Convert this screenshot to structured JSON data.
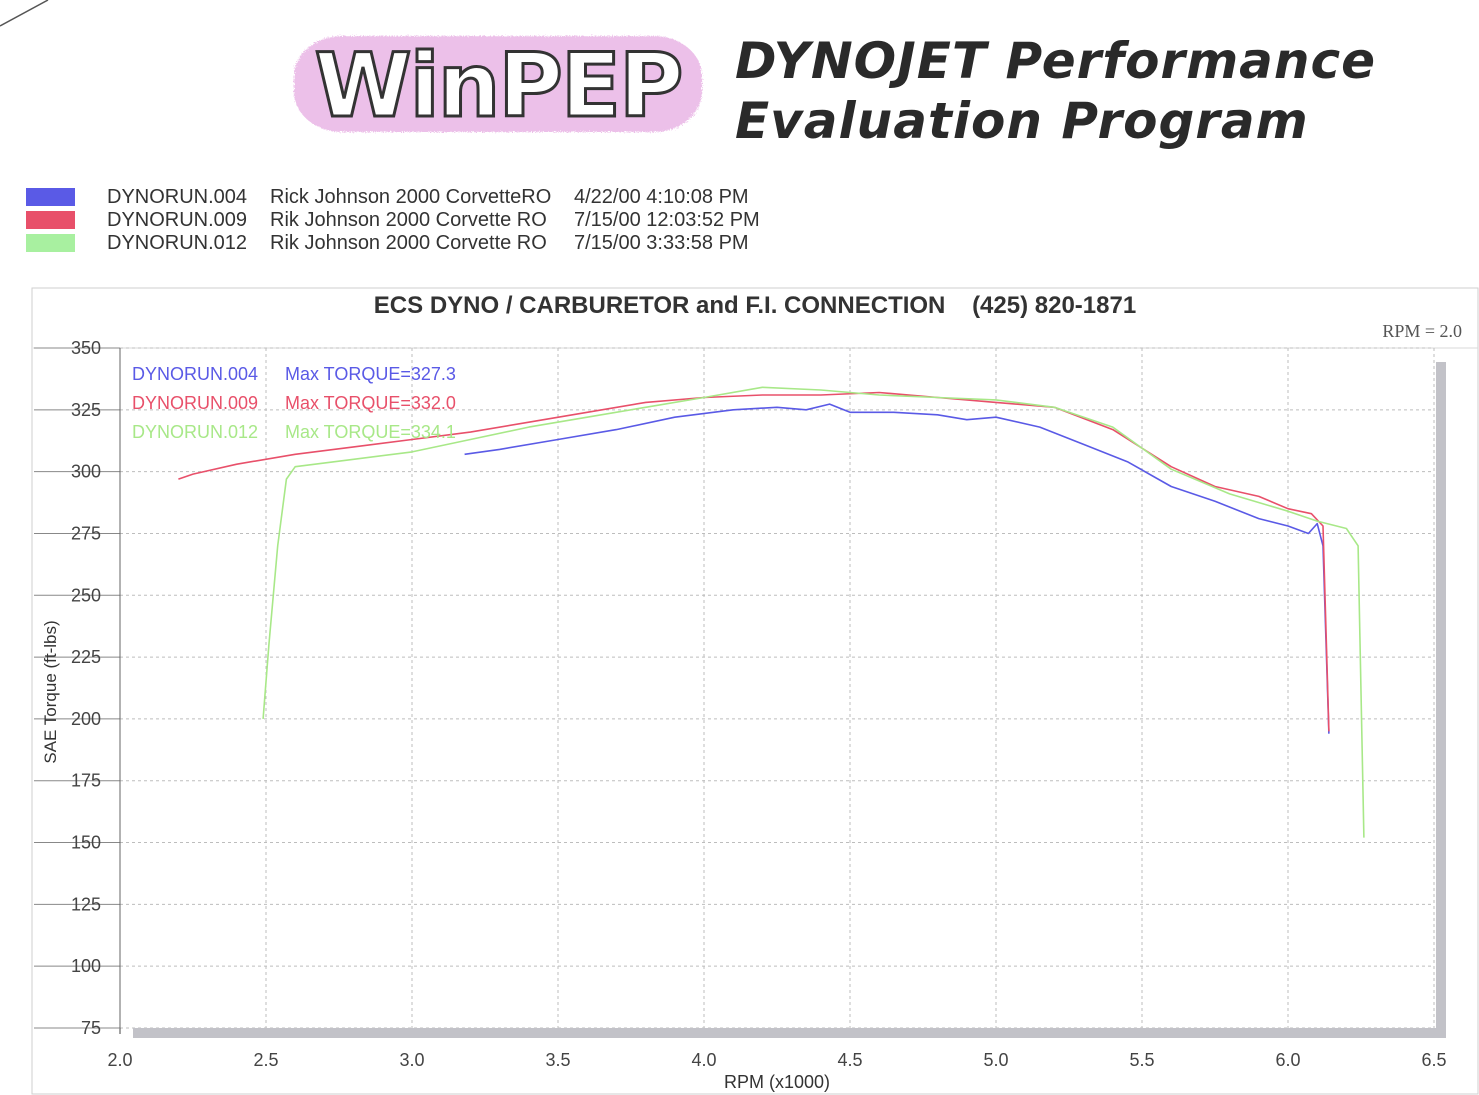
{
  "header": {
    "logo_text": "WinPEP",
    "line1": "DYNOJET Performance",
    "line2": "Evaluation Program"
  },
  "legend": [
    {
      "file": "DYNORUN.004",
      "description": "Rick Johnson 2000 CorvetteRO",
      "date": "4/22/00 4:10:08 PM",
      "color": "#5a5ae6"
    },
    {
      "file": "DYNORUN.009",
      "description": "Rik Johnson 2000 Corvette  RO",
      "date": "7/15/00 12:03:52 PM",
      "color": "#e8506a"
    },
    {
      "file": "DYNORUN.012",
      "description": "Rik Johnson 2000 Corvette  RO",
      "date": "7/15/00 3:33:58 PM",
      "color": "#a8f0a0"
    }
  ],
  "chart_data": {
    "type": "line",
    "title": "ECS DYNO / CARBURETOR and F.I. CONNECTION    (425) 820-1871",
    "corner_label": "RPM = 2.0",
    "xlabel": "RPM (x1000)",
    "ylabel": "SAE Torque (ft-lbs)",
    "xlim": [
      2.0,
      6.5
    ],
    "ylim": [
      75,
      350
    ],
    "xticks": [
      "2.0",
      "2.5",
      "3.0",
      "3.5",
      "4.0",
      "4.5",
      "5.0",
      "5.5",
      "6.0",
      "6.5"
    ],
    "yticks": [
      "75",
      "100",
      "125",
      "150",
      "175",
      "200",
      "225",
      "250",
      "275",
      "300",
      "325",
      "350"
    ],
    "grid": true,
    "annotations": [
      {
        "file": "DYNORUN.004",
        "text": "Max TORQUE=327.3",
        "color": "#5a5ae6"
      },
      {
        "file": "DYNORUN.009",
        "text": "Max TORQUE=332.0",
        "color": "#e8506a"
      },
      {
        "file": "DYNORUN.012",
        "text": "Max TORQUE=334.1",
        "color": "#a8e888"
      }
    ],
    "series": [
      {
        "name": "DYNORUN.004",
        "color": "#5a5ae6",
        "x": [
          3.18,
          3.3,
          3.5,
          3.7,
          3.9,
          4.1,
          4.25,
          4.35,
          4.43,
          4.5,
          4.65,
          4.8,
          4.9,
          5.0,
          5.15,
          5.3,
          5.45,
          5.6,
          5.75,
          5.9,
          6.0,
          6.07,
          6.1,
          6.12,
          6.14
        ],
        "y": [
          307,
          309,
          313,
          317,
          322,
          325,
          326,
          325,
          327.3,
          324,
          324,
          323,
          321,
          322,
          318,
          311,
          304,
          294,
          288,
          281,
          278,
          275,
          279,
          270,
          194
        ]
      },
      {
        "name": "DYNORUN.009",
        "color": "#e8506a",
        "x": [
          2.2,
          2.25,
          2.4,
          2.6,
          2.8,
          3.0,
          3.2,
          3.4,
          3.6,
          3.8,
          4.0,
          4.2,
          4.4,
          4.6,
          4.8,
          5.0,
          5.2,
          5.4,
          5.6,
          5.75,
          5.9,
          6.0,
          6.08,
          6.12,
          6.14
        ],
        "y": [
          297,
          299,
          303,
          307,
          310,
          313,
          316,
          320,
          324,
          328,
          330,
          331,
          331,
          332,
          330,
          328,
          326,
          317,
          302,
          294,
          290,
          285,
          283,
          278,
          195
        ]
      },
      {
        "name": "DYNORUN.012",
        "color": "#a8e888",
        "x": [
          2.49,
          2.51,
          2.54,
          2.57,
          2.6,
          2.8,
          3.0,
          3.2,
          3.4,
          3.6,
          3.8,
          4.0,
          4.2,
          4.4,
          4.6,
          4.8,
          5.0,
          5.2,
          5.4,
          5.6,
          5.8,
          6.0,
          6.1,
          6.2,
          6.24,
          6.26
        ],
        "y": [
          200,
          230,
          270,
          297,
          302,
          305,
          308,
          313,
          318,
          322,
          326,
          330,
          334.1,
          333,
          331,
          330,
          329,
          326,
          318,
          301,
          291,
          284,
          280,
          277,
          270,
          152
        ]
      }
    ]
  }
}
